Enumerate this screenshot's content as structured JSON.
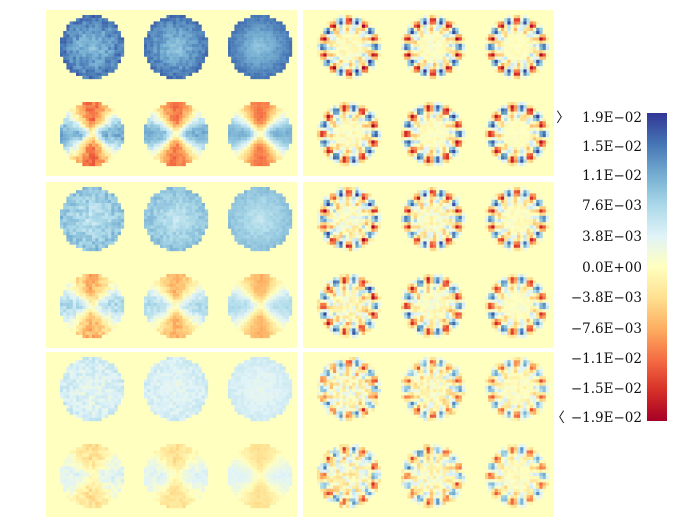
{
  "chart_data": {
    "type": "heatmap",
    "title": "",
    "xlabel": "",
    "ylabel": "",
    "background_color": "#ffffc0",
    "layout": {
      "block_rows": 3,
      "block_cols": 2,
      "panel_rows_per_block": 2,
      "panel_cols_per_block": 3
    },
    "colorbar": {
      "range": [
        -0.019,
        0.019
      ],
      "ticks": [
        0.019,
        0.015,
        0.011,
        0.0076,
        0.0038,
        0.0,
        -0.0038,
        -0.0076,
        -0.011,
        -0.015,
        -0.019
      ],
      "tick_labels": [
        "1.9E−02",
        "1.5E−02",
        "1.1E−02",
        "7.6E−03",
        "3.8E−03",
        "0.0E+00",
        "−3.8E−03",
        "−7.6E−03",
        "−1.1E−02",
        "−1.5E−02",
        "−1.9E−02"
      ],
      "top_marker": "〉",
      "bottom_marker": "〈",
      "colors": [
        "#a50026",
        "#d73027",
        "#f46d43",
        "#fdae61",
        "#fee090",
        "#ffffbf",
        "#e0f3f8",
        "#abd9e9",
        "#74add1",
        "#4575b4",
        "#313695"
      ]
    },
    "blocks": [
      {
        "row": 0,
        "col": 0,
        "panel_type": "radial",
        "amplitude": 0.017,
        "noise": 0.12
      },
      {
        "row": 0,
        "col": 1,
        "panel_type": "ring",
        "amplitude": 0.019,
        "noise": 0.1
      },
      {
        "row": 1,
        "col": 0,
        "panel_type": "radial",
        "amplitude": 0.011,
        "noise": 0.18
      },
      {
        "row": 1,
        "col": 1,
        "panel_type": "ring",
        "amplitude": 0.017,
        "noise": 0.2
      },
      {
        "row": 2,
        "col": 0,
        "panel_type": "radial",
        "amplitude": 0.0055,
        "noise": 0.3
      },
      {
        "row": 2,
        "col": 1,
        "panel_type": "ring",
        "amplitude": 0.013,
        "noise": 0.35
      }
    ]
  }
}
